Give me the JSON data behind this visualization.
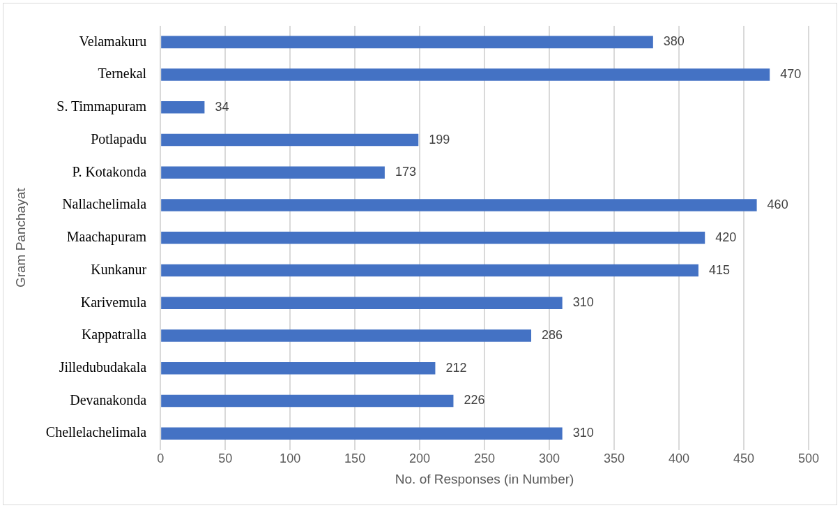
{
  "chart_data": {
    "type": "bar",
    "orientation": "horizontal",
    "xlabel": "No. of Responses (in Number)",
    "ylabel": "Gram Panchayat",
    "categories": [
      "Velamakuru",
      "Ternekal",
      "S. Timmapuram",
      "Potlapadu",
      "P. Kotakonda",
      "Nallachelimala",
      "Maachapuram",
      "Kunkanur",
      "Karivemula",
      "Kappatralla",
      "Jilledubudakala",
      "Devanakonda",
      "Chellelachelimala"
    ],
    "values": [
      380,
      470,
      34,
      199,
      173,
      460,
      420,
      415,
      310,
      286,
      212,
      226,
      310
    ],
    "color": "#4472c4",
    "xlim": [
      0,
      500
    ],
    "xticks": [
      0,
      50,
      100,
      150,
      200,
      250,
      300,
      350,
      400,
      450,
      500
    ],
    "grid": "x",
    "data_labels": true
  }
}
